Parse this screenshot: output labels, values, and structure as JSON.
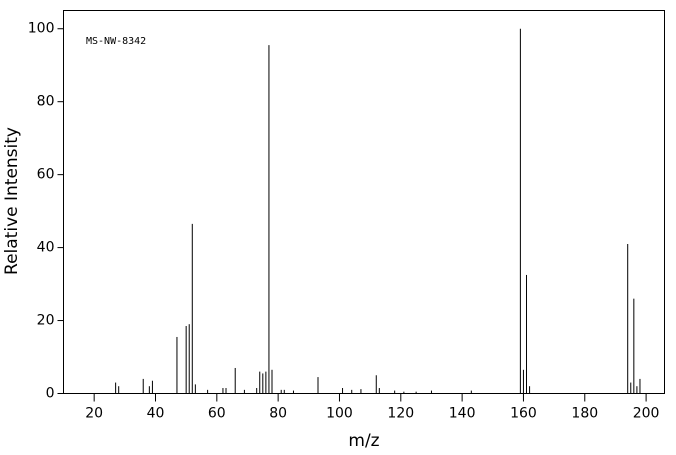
{
  "chart_data": {
    "type": "stem",
    "annotation": "MS-NW-8342",
    "xlabel": "m/z",
    "ylabel": "Relative Intensity",
    "x": [
      27,
      28,
      36,
      38,
      39,
      47,
      50,
      51,
      52,
      53,
      57,
      62,
      63,
      66,
      69,
      73,
      74,
      75,
      76,
      77,
      78,
      81,
      82,
      85,
      93,
      101,
      104,
      107,
      112,
      113,
      118,
      121,
      125,
      130,
      143,
      159,
      160,
      161,
      162,
      194,
      195,
      196,
      197,
      198
    ],
    "values": [
      3,
      2,
      4,
      2,
      3.5,
      15.5,
      18.5,
      19,
      46.5,
      2.5,
      1,
      1.5,
      1.5,
      7,
      1,
      1.5,
      6,
      5.5,
      6,
      95.5,
      6.5,
      1,
      1,
      0.8,
      4.5,
      1.5,
      1,
      1.2,
      5,
      1.5,
      0.8,
      0.5,
      0.5,
      0.8,
      0.8,
      100,
      6.5,
      32.5,
      2,
      41,
      3,
      26,
      2,
      4
    ],
    "color": "#000000",
    "xlim": [
      10,
      206
    ],
    "ylim": [
      0,
      105
    ],
    "xticks": [
      20,
      40,
      60,
      80,
      100,
      120,
      140,
      160,
      180,
      200
    ],
    "yticks": [
      0,
      20,
      40,
      60,
      80,
      100
    ]
  }
}
